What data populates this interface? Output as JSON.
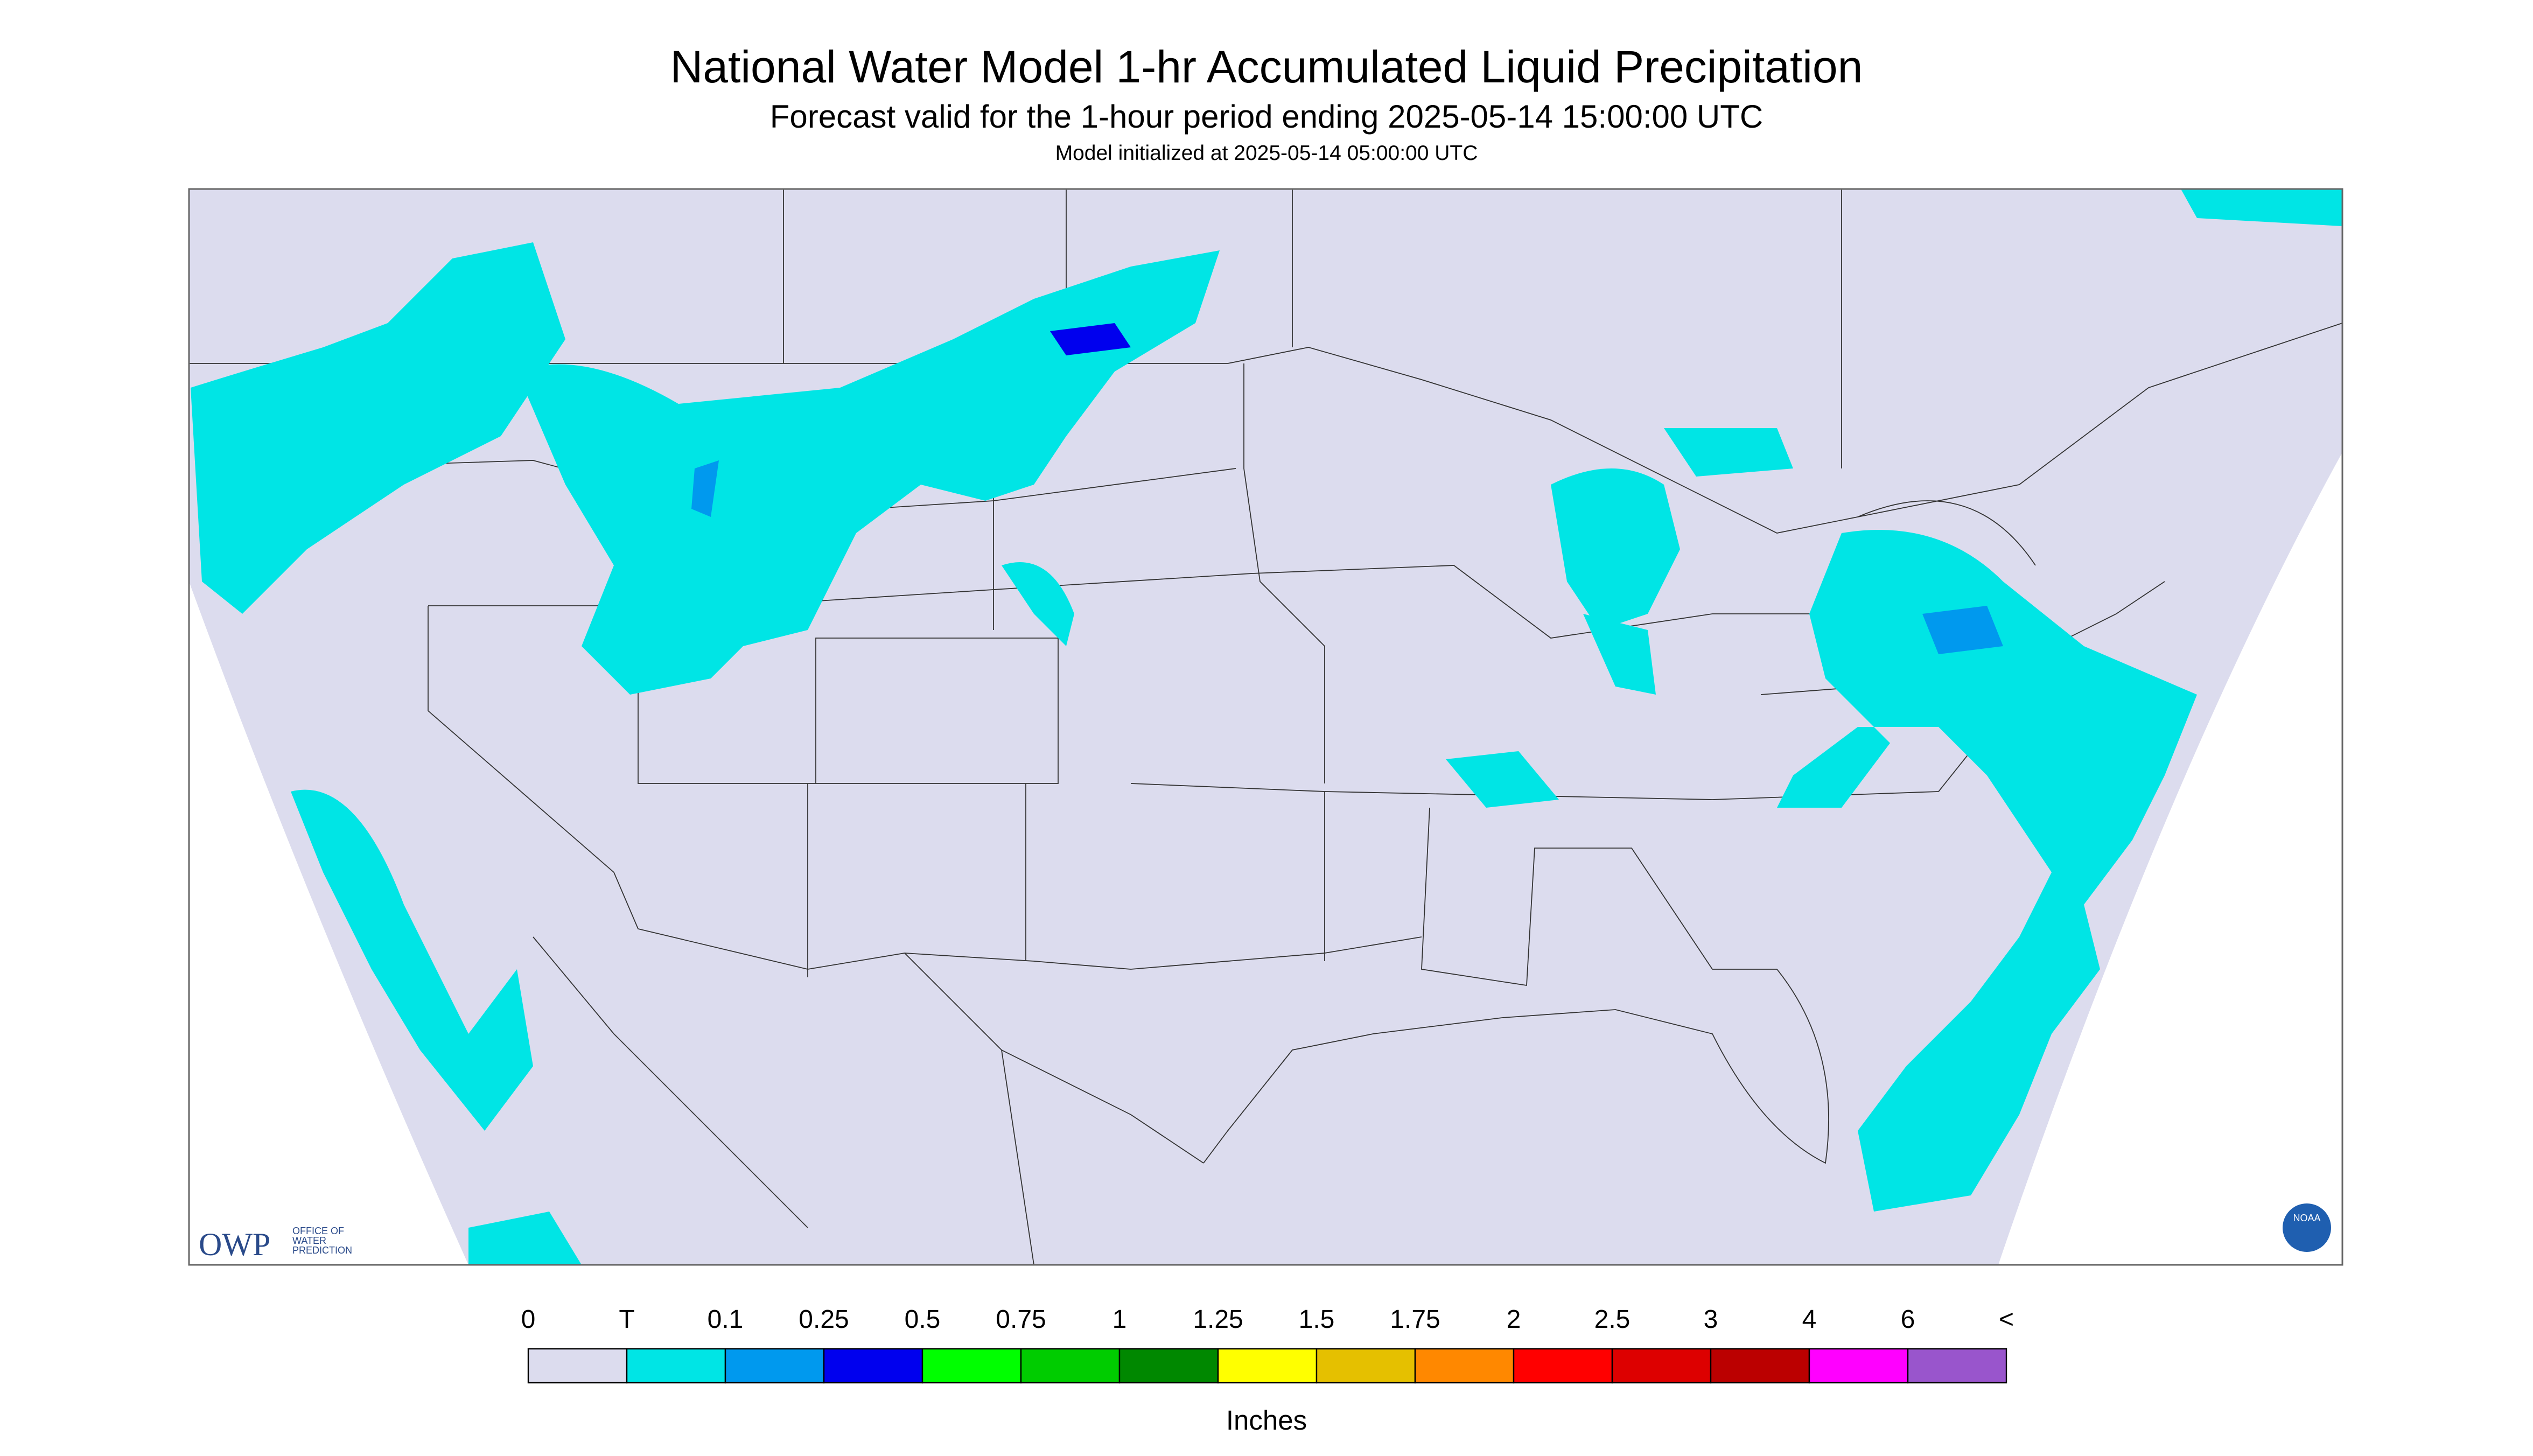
{
  "header": {
    "title": "National Water Model 1-hr Accumulated Liquid Precipitation",
    "subtitle": "Forecast valid for the 1-hour period ending 2025-05-14 15:00:00 UTC",
    "note": "Model initialized at 2025-05-14 05:00:00 UTC"
  },
  "logos": {
    "owp": "OWP",
    "owp_line1": "OFFICE OF",
    "owp_line2": "WATER",
    "owp_line3": "PREDICTION",
    "noaa": "NOAA"
  },
  "legend": {
    "labels": [
      "0",
      "T",
      "0.1",
      "0.25",
      "0.5",
      "0.75",
      "1",
      "1.25",
      "1.5",
      "1.75",
      "2",
      "2.5",
      "3",
      "4",
      "6",
      "<"
    ],
    "colors": [
      "#dcdcee",
      "#00e5e5",
      "#0099ee",
      "#0000ee",
      "#00ff00",
      "#00cc00",
      "#008800",
      "#ffff00",
      "#e5c000",
      "#ff8800",
      "#ff0000",
      "#dd0000",
      "#bb0000",
      "#ff00ff",
      "#9955cc"
    ],
    "unit": "Inches"
  }
}
